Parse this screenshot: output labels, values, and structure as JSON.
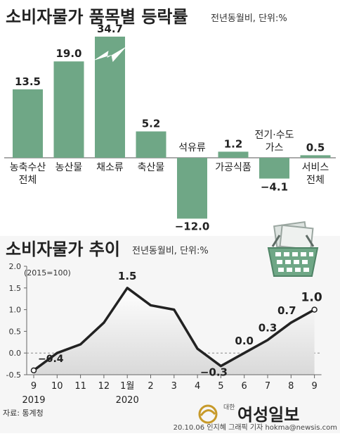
{
  "bar_chart": {
    "title": "소비자물가 품목별 등락률",
    "subtitle": "전년동월비, 단위:%",
    "color": "#6fa786",
    "spike_color": "#ffffff"
  },
  "line_chart": {
    "title": "소비자물가 추이",
    "subtitle": "전년동월비, 단위:%",
    "base_note": "(2015=100)",
    "line_color": "#222222",
    "y_ticks": [
      "2.0",
      "1.5",
      "1.0",
      "0.5",
      "0.0",
      "-0.5"
    ],
    "x_months": [
      "9",
      "10",
      "11",
      "12",
      "1월",
      "2",
      "3",
      "4",
      "5",
      "6",
      "7",
      "8",
      "9"
    ],
    "years": [
      "2019",
      "2020"
    ]
  },
  "footer": {
    "source": "자료: 통계청",
    "credit": "20.10.06 인지혜 그래픽 기자  hokma@newsis.com",
    "logo_small": "대한",
    "logo_text": "여성일보",
    "logo_color": "#c79a2a"
  },
  "chart_data": [
    {
      "type": "bar",
      "title": "소비자물가 품목별 등락률",
      "ylabel": "전년동월비, 단위:%",
      "categories": [
        "농축수산\n전체",
        "농산물",
        "채소류",
        "축산물",
        "석유류",
        "가공식품",
        "전기·수도\n가스",
        "서비스\n전체"
      ],
      "values": [
        13.5,
        19.0,
        34.7,
        5.2,
        -12.0,
        1.2,
        -4.1,
        0.5
      ],
      "value_labels": [
        "13.5",
        "19.0",
        "34.7",
        "5.2",
        "−12.0",
        "1.2",
        "−4.1",
        "0.5"
      ],
      "broken_axis": [
        false,
        false,
        true,
        false,
        false,
        false,
        false,
        false
      ]
    },
    {
      "type": "line",
      "title": "소비자물가 추이",
      "ylabel": "전년동월비, 단위:%",
      "x": [
        "2019-09",
        "2019-10",
        "2019-11",
        "2019-12",
        "2020-01",
        "2020-02",
        "2020-03",
        "2020-04",
        "2020-05",
        "2020-06",
        "2020-07",
        "2020-08",
        "2020-09"
      ],
      "values": [
        -0.4,
        0.0,
        0.2,
        0.7,
        1.5,
        1.1,
        1.0,
        0.1,
        -0.3,
        0.0,
        0.3,
        0.7,
        1.0
      ],
      "point_labels": [
        "−0.4",
        "",
        "",
        "",
        "1.5",
        "",
        "",
        "",
        "−0.3",
        "0.0",
        "0.3",
        "0.7",
        "1.0"
      ],
      "ylim": [
        -0.5,
        2.0
      ],
      "grid": false
    }
  ]
}
